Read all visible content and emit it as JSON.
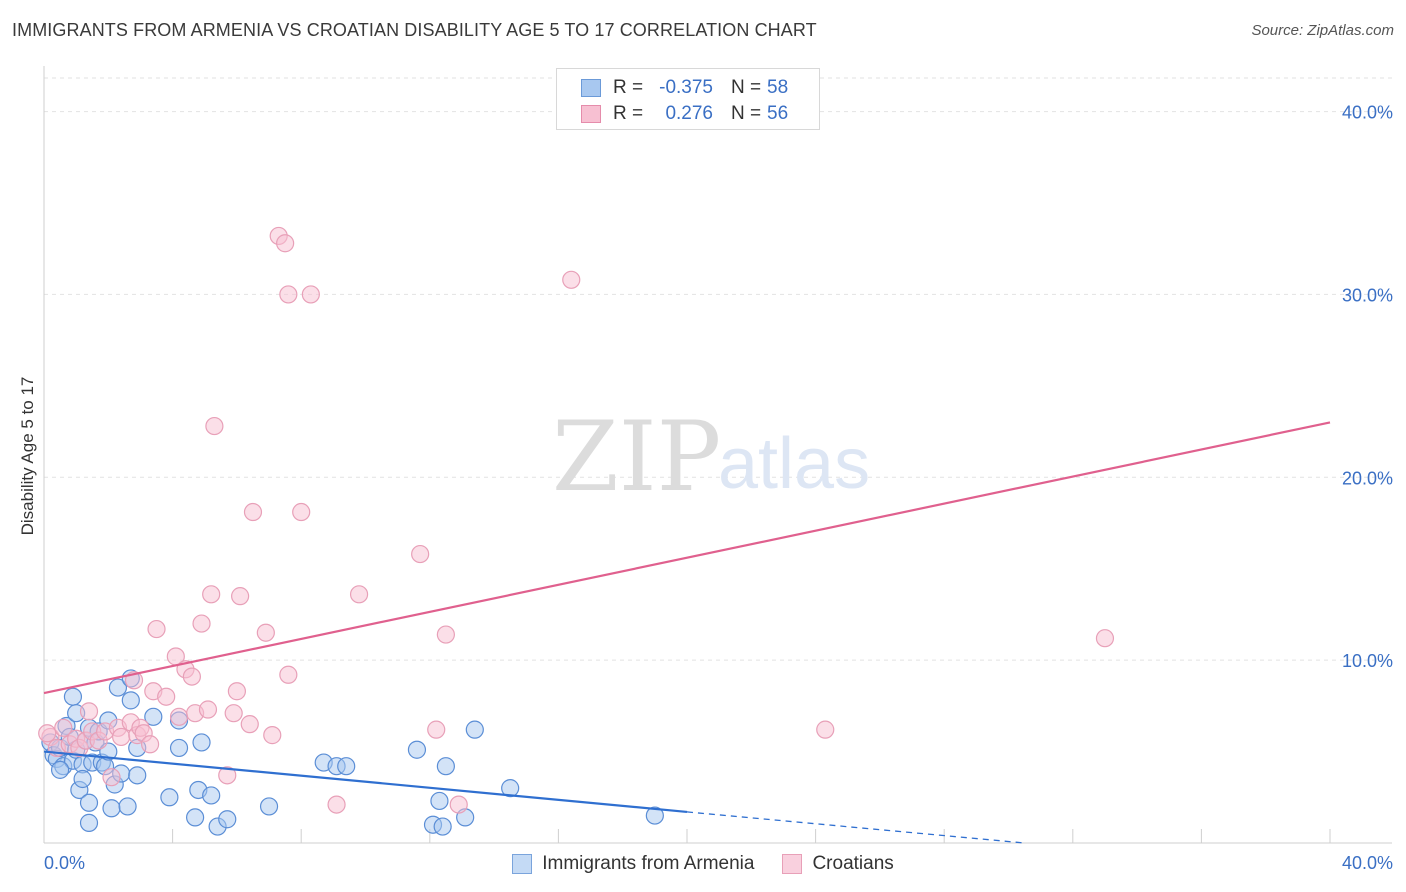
{
  "header": {
    "title": "IMMIGRANTS FROM ARMENIA VS CROATIAN DISABILITY AGE 5 TO 17 CORRELATION CHART",
    "source": "Source: ZipAtlas.com"
  },
  "watermark": {
    "zip": "ZIP",
    "atlas": "atlas"
  },
  "legend_top": [
    {
      "r_label": "R =",
      "r_value": "-0.375",
      "n_label": "N =",
      "n_value": "58",
      "color": "#a8c8f0",
      "border": "#6b9ad8"
    },
    {
      "r_label": "R =",
      "r_value": "0.276",
      "n_label": "N =",
      "n_value": "56",
      "color": "#f7c0d2",
      "border": "#e58cab"
    }
  ],
  "chart_data": {
    "type": "scatter",
    "title": "IMMIGRANTS FROM ARMENIA VS CROATIAN DISABILITY AGE 5 TO 17 CORRELATION CHART",
    "xlabel": "",
    "ylabel": "Disability Age 5 to 17",
    "xlim": [
      0,
      40
    ],
    "ylim": [
      0,
      42
    ],
    "x_tick_labels": [
      "0.0%",
      "40.0%"
    ],
    "y_ticks": [
      10,
      20,
      30,
      40
    ],
    "y_tick_labels": [
      "10.0%",
      "20.0%",
      "30.0%",
      "40.0%"
    ],
    "grid": true,
    "series": [
      {
        "name": "Immigrants from Armenia",
        "color": "#a8c8f0",
        "stroke": "#5b8ed6",
        "trend_color": "#2f6fd0",
        "trend": {
          "x0": 0,
          "y0": 5.0,
          "x1": 20,
          "y1": 1.7,
          "dash_to_x": 30.5,
          "dash_to_y": 0
        },
        "points": [
          [
            0.2,
            5.5
          ],
          [
            0.3,
            4.8
          ],
          [
            0.4,
            4.6
          ],
          [
            0.5,
            5.2
          ],
          [
            0.6,
            4.2
          ],
          [
            0.7,
            6.4
          ],
          [
            0.8,
            5.8
          ],
          [
            0.9,
            4.5
          ],
          [
            1.0,
            5.1
          ],
          [
            0.9,
            8.0
          ],
          [
            1.0,
            7.1
          ],
          [
            1.1,
            2.9
          ],
          [
            1.2,
            4.3
          ],
          [
            1.3,
            5.6
          ],
          [
            1.4,
            6.3
          ],
          [
            1.5,
            4.4
          ],
          [
            1.4,
            2.2
          ],
          [
            1.4,
            1.1
          ],
          [
            1.6,
            5.5
          ],
          [
            1.7,
            6.1
          ],
          [
            1.8,
            4.4
          ],
          [
            1.9,
            4.2
          ],
          [
            2.0,
            6.7
          ],
          [
            2.1,
            1.9
          ],
          [
            2.2,
            3.2
          ],
          [
            2.3,
            8.5
          ],
          [
            2.4,
            3.8
          ],
          [
            2.6,
            2.0
          ],
          [
            2.7,
            7.8
          ],
          [
            2.7,
            9.0
          ],
          [
            2.9,
            3.7
          ],
          [
            2.9,
            5.2
          ],
          [
            3.4,
            6.9
          ],
          [
            3.9,
            2.5
          ],
          [
            4.2,
            6.7
          ],
          [
            4.2,
            5.2
          ],
          [
            4.7,
            1.4
          ],
          [
            4.8,
            2.9
          ],
          [
            4.9,
            5.5
          ],
          [
            5.2,
            2.6
          ],
          [
            5.4,
            0.9
          ],
          [
            5.7,
            1.3
          ],
          [
            7.0,
            2.0
          ],
          [
            8.7,
            4.4
          ],
          [
            9.1,
            4.2
          ],
          [
            9.4,
            4.2
          ],
          [
            11.6,
            5.1
          ],
          [
            12.1,
            1.0
          ],
          [
            12.3,
            2.3
          ],
          [
            12.4,
            0.9
          ],
          [
            12.5,
            4.2
          ],
          [
            13.1,
            1.4
          ],
          [
            13.4,
            6.2
          ],
          [
            14.5,
            3.0
          ],
          [
            19.0,
            1.5
          ],
          [
            0.5,
            4.0
          ],
          [
            1.2,
            3.5
          ],
          [
            2.0,
            5.0
          ]
        ]
      },
      {
        "name": "Croatians",
        "color": "#f7c0d2",
        "stroke": "#e8a0b8",
        "trend_color": "#e0608e",
        "trend": {
          "x0": 0,
          "y0": 8.2,
          "x1": 40,
          "y1": 23.0
        },
        "points": [
          [
            0.2,
            5.8
          ],
          [
            0.4,
            5.2
          ],
          [
            0.6,
            6.3
          ],
          [
            0.8,
            5.4
          ],
          [
            1.0,
            5.7
          ],
          [
            1.1,
            5.2
          ],
          [
            1.3,
            5.6
          ],
          [
            1.4,
            7.2
          ],
          [
            1.5,
            6.1
          ],
          [
            1.7,
            5.6
          ],
          [
            1.9,
            6.1
          ],
          [
            2.1,
            3.6
          ],
          [
            2.3,
            6.3
          ],
          [
            2.4,
            5.8
          ],
          [
            2.7,
            6.6
          ],
          [
            2.8,
            8.9
          ],
          [
            2.9,
            5.9
          ],
          [
            3.0,
            6.3
          ],
          [
            3.1,
            6.0
          ],
          [
            3.3,
            5.4
          ],
          [
            3.4,
            8.3
          ],
          [
            3.5,
            11.7
          ],
          [
            3.8,
            8.0
          ],
          [
            4.1,
            10.2
          ],
          [
            4.2,
            6.9
          ],
          [
            4.4,
            9.5
          ],
          [
            4.6,
            9.1
          ],
          [
            4.7,
            7.1
          ],
          [
            4.9,
            12.0
          ],
          [
            5.1,
            7.3
          ],
          [
            5.2,
            13.6
          ],
          [
            5.3,
            22.8
          ],
          [
            5.7,
            3.7
          ],
          [
            5.9,
            7.1
          ],
          [
            6.0,
            8.3
          ],
          [
            6.1,
            13.5
          ],
          [
            6.4,
            6.5
          ],
          [
            6.5,
            18.1
          ],
          [
            6.9,
            11.5
          ],
          [
            7.1,
            5.9
          ],
          [
            7.3,
            33.2
          ],
          [
            7.5,
            32.8
          ],
          [
            7.6,
            9.2
          ],
          [
            7.6,
            30.0
          ],
          [
            8.3,
            30.0
          ],
          [
            8.0,
            18.1
          ],
          [
            9.1,
            2.1
          ],
          [
            9.8,
            13.6
          ],
          [
            11.7,
            15.8
          ],
          [
            12.2,
            6.2
          ],
          [
            12.5,
            11.4
          ],
          [
            12.9,
            2.1
          ],
          [
            16.4,
            30.8
          ],
          [
            24.3,
            6.2
          ],
          [
            33.0,
            11.2
          ],
          [
            0.1,
            6.0
          ]
        ]
      }
    ]
  }
}
